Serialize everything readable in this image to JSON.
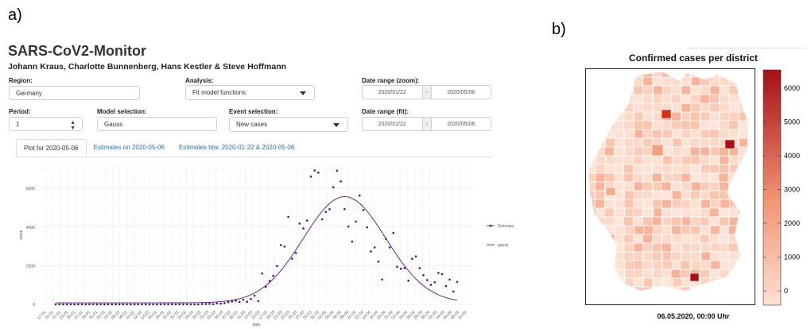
{
  "panel_a_label": "a)",
  "panel_b_label": "b)",
  "app": {
    "title": "SARS-CoV2-Monitor",
    "authors": "Johann Kraus, Charlotte Bunnenberg, Hans Kestler & Steve Hoffmann"
  },
  "controls": {
    "region_label": "Region:",
    "region_value": "Germany",
    "analysis_label": "Analysis:",
    "analysis_value": "Fit model functions",
    "date_zoom_label": "Date range (zoom):",
    "date_zoom_start": "2020/01/22",
    "date_zoom_end": "2020/05/06",
    "period_label": "Period:",
    "period_value": "1",
    "model_label": "Model selection:",
    "model_value": "Gauss",
    "event_label": "Event selection:",
    "event_value": "New cases",
    "date_fit_label": "Date range (fit):",
    "date_fit_start": "2020/01/22",
    "date_fit_end": "2020/05/06",
    "date_sep": "-"
  },
  "tabs": [
    {
      "label": "Plot for 2020-05-06",
      "active": true
    },
    {
      "label": "Estimates on 2020-05-06",
      "active": false
    },
    {
      "label": "Estimates btw. 2020-01-22 & 2020-05-06",
      "active": false
    }
  ],
  "chart_data": [
    {
      "type": "scatter",
      "xlabel": "date",
      "ylabel": "value",
      "x_ticks": [
        "17-01",
        "19-01",
        "21-01",
        "23-01",
        "25-01",
        "27-01",
        "29-01",
        "31-01",
        "02-02",
        "04-02",
        "06-02",
        "08-02",
        "10-02",
        "12-02",
        "14-02",
        "16-02",
        "18-02",
        "20-02",
        "22-02",
        "24-02",
        "26-02",
        "28-02",
        "01-03",
        "03-03",
        "05-03",
        "07-03",
        "09-03",
        "11-03",
        "13-03",
        "15-03",
        "17-03",
        "19-03",
        "21-03",
        "23-03",
        "25-03",
        "27-03",
        "29-03",
        "31-03",
        "02-04",
        "04-04",
        "06-04",
        "08-04",
        "10-04",
        "12-04",
        "14-04",
        "16-04",
        "18-04",
        "20-04",
        "22-04",
        "24-04",
        "26-04",
        "28-04",
        "30-04",
        "02-05",
        "04-05",
        "06-05",
        "08-05",
        "10-05"
      ],
      "y_ticks": [
        0,
        2000,
        4000,
        6000
      ],
      "ylim": [
        0,
        7200
      ],
      "legend": [
        "Germany",
        "gauss"
      ],
      "legend_position": "right",
      "grid": true,
      "series": [
        {
          "name": "Germany",
          "kind": "points",
          "color": "#3b1f6b",
          "values": [
            0,
            0,
            0,
            0,
            0,
            0,
            0,
            0,
            0,
            0,
            0,
            0,
            0,
            0,
            0,
            0,
            0,
            0,
            0,
            0,
            0,
            0,
            0,
            0,
            0,
            0,
            0,
            0,
            0,
            0,
            0,
            0,
            0,
            0,
            0,
            0,
            0,
            0,
            0,
            16,
            18,
            26,
            10,
            54,
            35,
            66,
            117,
            150,
            188,
            129,
            241,
            136,
            281,
            451,
            170,
            1597,
            910,
            1210,
            1477,
            1985,
            3070,
            2993,
            4528,
            2365,
            2660,
            4183,
            3930,
            4337,
            6615,
            6933,
            6824,
            4400,
            4790,
            4923,
            6064,
            6922,
            6365,
            4933,
            4031,
            3251,
            4289,
            5633,
            4885,
            3990,
            2737,
            2946,
            2218,
            1287,
            3394,
            2945,
            3699,
            1945,
            1842,
            1881,
            1226,
            2357,
            2481,
            1870,
            1514,
            1257,
            1010,
            1144,
            1631,
            1568,
            945,
            1284,
            667,
            1165
          ]
        },
        {
          "name": "gauss",
          "kind": "line",
          "color": "#5a1470",
          "peak": 5500,
          "peak_index": 77,
          "sigma": 11
        }
      ]
    },
    {
      "type": "heatmap",
      "title": "Confirmed cases per district",
      "caption": "06.05.2020, 00:00 Uhr",
      "colorbar_ticks": [
        0,
        1000,
        2000,
        3000,
        4000,
        5000,
        6000
      ],
      "colorbar_range": [
        0,
        6400
      ],
      "color_low": "#fde0d2",
      "color_high": "#a50f15"
    }
  ]
}
